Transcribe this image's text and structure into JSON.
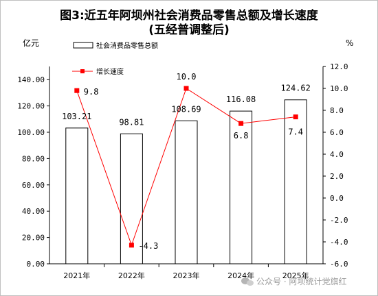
{
  "chart_data": {
    "type": "bar",
    "title_line1": "图3:近五年阿坝州社会消费品零售总额及增长速度",
    "title_line2": "(五经普调整后)",
    "left_unit": "亿元",
    "right_unit": "%",
    "categories": [
      "2021年",
      "2022年",
      "2023年",
      "2024年",
      "2025年"
    ],
    "series": [
      {
        "name": "社会消费品零售总额",
        "type": "bar",
        "axis": "left",
        "values": [
          103.21,
          98.81,
          108.69,
          116.08,
          124.62
        ],
        "labels": [
          "103.21",
          "98.81",
          "108.69",
          "116.08",
          "124.62"
        ]
      },
      {
        "name": "增长速度",
        "type": "line",
        "axis": "right",
        "values": [
          9.8,
          -4.3,
          10.0,
          6.8,
          7.4
        ],
        "labels": [
          "9.8",
          "-4.3",
          "10.0",
          "6.8",
          "7.4"
        ]
      }
    ],
    "left_axis": {
      "ylim": [
        0,
        150
      ],
      "ticks": [
        "0.00",
        "20.00",
        "40.00",
        "60.00",
        "80.00",
        "100.00",
        "120.00",
        "140.00"
      ]
    },
    "right_axis": {
      "ylim": [
        -6,
        12
      ],
      "ticks": [
        "-6.0",
        "-4.0",
        "-2.0",
        "0.0",
        "2.0",
        "4.0",
        "6.0",
        "8.0",
        "10.0",
        "12.0"
      ]
    },
    "grid": false,
    "legend_placement": "top",
    "colors": {
      "bar_fill": "#ffffff",
      "bar_stroke": "#000000",
      "line": "#ff0000",
      "marker": "#ff0000",
      "axis": "#000000"
    }
  },
  "watermark": {
    "text": "公众号 · 阿坝统计党旗红",
    "icon": "wechat-icon"
  }
}
